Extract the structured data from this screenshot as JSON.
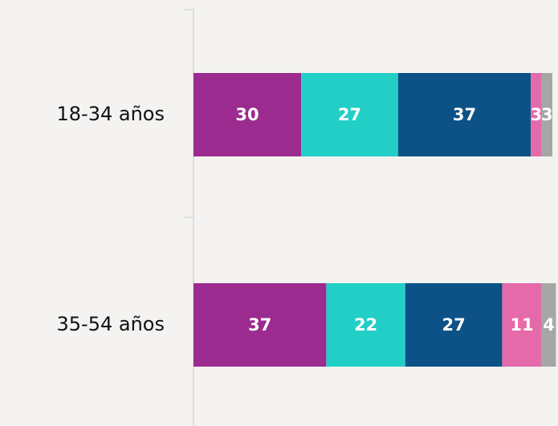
{
  "chart_data": {
    "type": "stacked_barh",
    "categories": [
      "18-34 años",
      "35-54 años"
    ],
    "series": [
      {
        "color": "#9c2b8f",
        "values": [
          30,
          37
        ]
      },
      {
        "color": "#22cfc7",
        "values": [
          27,
          22
        ]
      },
      {
        "color": "#0c5286",
        "values": [
          37,
          27
        ]
      },
      {
        "color": "#e56aaa",
        "values": [
          3,
          11
        ]
      },
      {
        "color": "#a6a6a6",
        "values": [
          3,
          4
        ]
      }
    ],
    "xlim": [
      0,
      100
    ]
  }
}
